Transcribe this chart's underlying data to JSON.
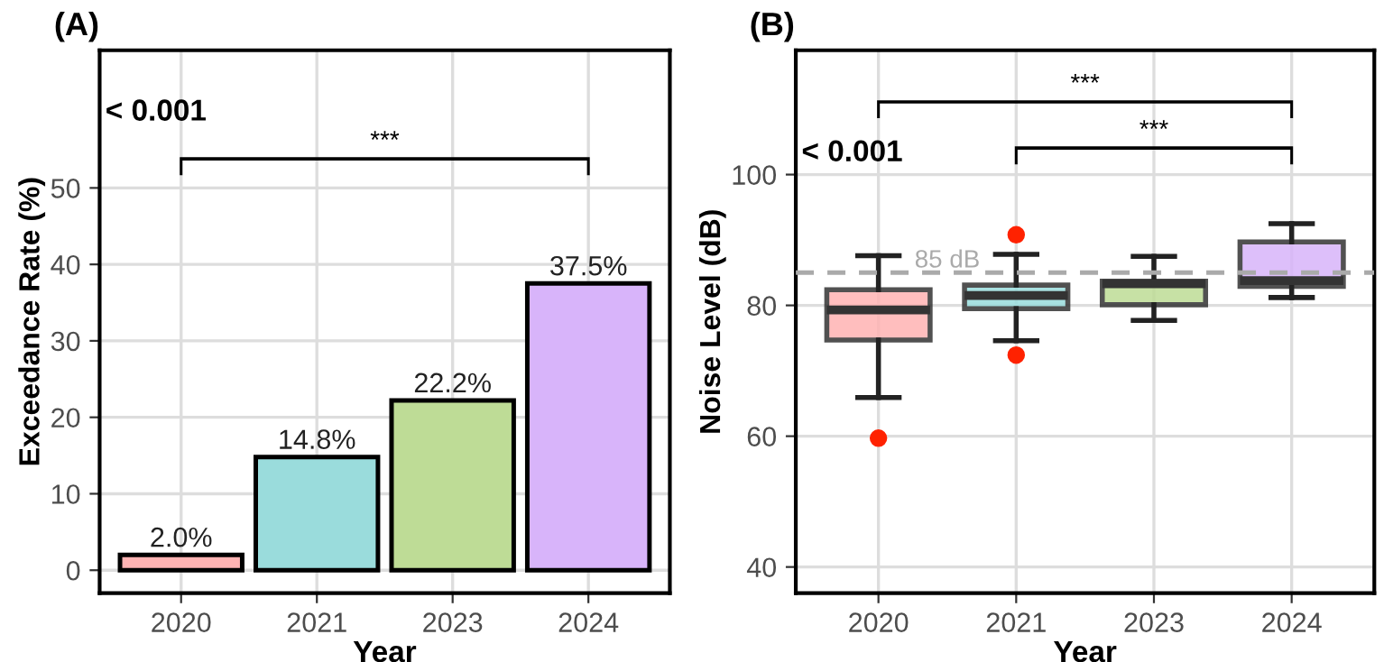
{
  "chart_data": [
    {
      "type": "bar",
      "title": "(A)",
      "xlabel": "Year",
      "ylabel": "Exceedance Rate (%)",
      "categories": [
        "2020",
        "2021",
        "2023",
        "2024"
      ],
      "values": [
        2.0,
        14.8,
        22.2,
        37.5
      ],
      "value_labels": [
        "2.0%",
        "14.8%",
        "22.2%",
        "37.5%"
      ],
      "colors": [
        "#ffb3b3",
        "#9adcdc",
        "#bedc96",
        "#d8b4fa"
      ],
      "ylim": [
        -3,
        68
      ],
      "yticks": [
        0,
        10,
        20,
        30,
        40,
        50
      ],
      "grid": true,
      "annotations": [
        "< 0.001",
        "***"
      ]
    },
    {
      "type": "box",
      "title": "(B)",
      "xlabel": "Year",
      "ylabel": "Noise Level (dB)",
      "categories": [
        "2020",
        "2021",
        "2023",
        "2024"
      ],
      "colors": [
        "#ffb3b3",
        "#9adcdc",
        "#bedc96",
        "#d8b4fa"
      ],
      "boxes": [
        {
          "low": 65.9,
          "q1": 74.7,
          "median": 79.3,
          "q3": 82.4,
          "high": 87.6,
          "outliers": [
            59.7
          ]
        },
        {
          "low": 74.6,
          "q1": 79.5,
          "median": 81.5,
          "q3": 83.1,
          "high": 87.8,
          "outliers": [
            90.8,
            72.4
          ]
        },
        {
          "low": 77.7,
          "q1": 80.1,
          "median": 83.3,
          "q3": 83.7,
          "high": 87.5
        },
        {
          "low": 81.2,
          "q1": 82.9,
          "median": 83.8,
          "q3": 89.7,
          "high": 92.5
        }
      ],
      "ylim": [
        36,
        119
      ],
      "yticks": [
        40,
        60,
        80,
        100
      ],
      "grid": true,
      "ref_lines": [
        {
          "axis": "y",
          "value": 85,
          "label": "85 dB",
          "color": "#aaaaaa",
          "line_style": "dashed"
        }
      ],
      "annotations": [
        "< 0.001",
        "***",
        "***"
      ]
    }
  ]
}
